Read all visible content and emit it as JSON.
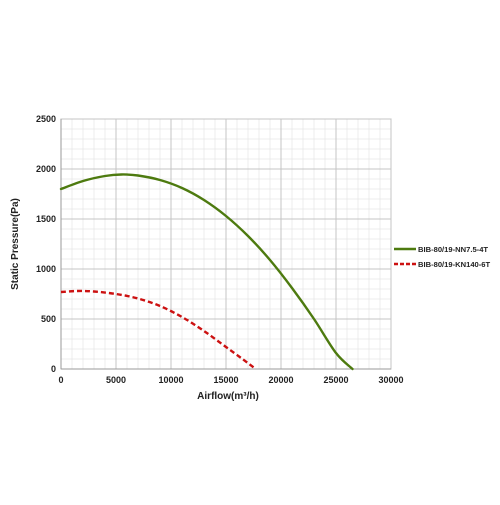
{
  "chart_data": {
    "type": "line",
    "title": "",
    "xlabel": "Airflow(m³/h)",
    "ylabel": "Static Pressure(Pa)",
    "xlim": [
      0,
      30000
    ],
    "ylim": [
      0,
      2500
    ],
    "x_ticks": [
      0,
      5000,
      10000,
      15000,
      20000,
      25000,
      30000
    ],
    "y_ticks": [
      0,
      500,
      1000,
      1500,
      2000,
      2500
    ],
    "x_tick_labels": [
      "0",
      "5000",
      "10000",
      "15000",
      "20000",
      "25000",
      "30000"
    ],
    "y_tick_labels": [
      "0",
      "500",
      "1000",
      "1500",
      "2000",
      "2500"
    ],
    "grid": true,
    "grid_minor": true,
    "legend_position": "right",
    "series": [
      {
        "name": "BIB-80/19-NN7.5-4T",
        "color": "#4d7a0f",
        "style": "solid",
        "x": [
          0,
          2000,
          4000,
          5500,
          7000,
          9000,
          11000,
          13000,
          15000,
          17000,
          19000,
          21000,
          23000,
          25000,
          26500
        ],
        "y": [
          1800,
          1880,
          1930,
          1945,
          1935,
          1890,
          1810,
          1690,
          1530,
          1330,
          1090,
          810,
          500,
          160,
          0
        ]
      },
      {
        "name": "BIB-80/19-KN140-6T",
        "color": "#cc1111",
        "style": "dashed",
        "x": [
          0,
          1500,
          3000,
          5000,
          7000,
          9000,
          11000,
          13000,
          15000,
          16500,
          17700
        ],
        "y": [
          770,
          780,
          775,
          750,
          705,
          630,
          520,
          380,
          220,
          100,
          0
        ]
      }
    ]
  }
}
